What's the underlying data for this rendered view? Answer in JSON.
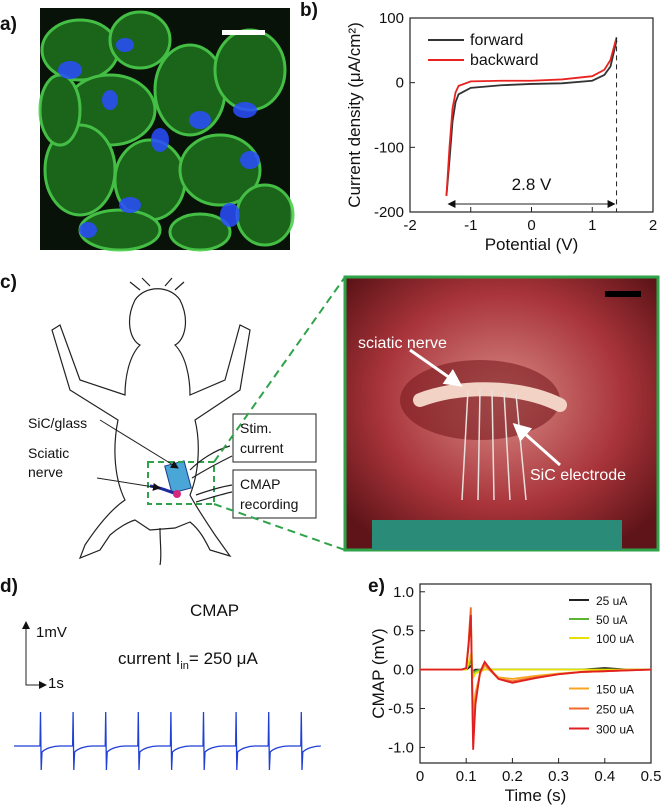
{
  "panels": {
    "a": "a)",
    "b": "b)",
    "c": "c)",
    "d": "d)",
    "e": "e)"
  },
  "diagram": {
    "sic_glass": "SiC/glass",
    "sciatic_1": "Sciatic",
    "sciatic_2": "nerve",
    "stim_1": "Stim.",
    "stim_2": "current",
    "cmap_1": "CMAP",
    "cmap_2": "recording",
    "photo_nerve": "sciatic nerve",
    "photo_electrode": "SiC electrode"
  },
  "trace": {
    "title": "CMAP",
    "scale_y": "1mV",
    "scale_x": "1s",
    "current_label": "current I",
    "current_subscript": "in",
    "current_value": "= 250 μA"
  },
  "chart_data": [
    {
      "type": "line",
      "xlabel": "Potential (V)",
      "ylabel": "Current density (μA/cm²)",
      "annotation": "2.8 V",
      "legend": "upper left",
      "x": [
        -1.4,
        -1.35,
        -1.3,
        -1.25,
        -1.2,
        -1.0,
        -0.5,
        0,
        0.5,
        1.0,
        1.2,
        1.3,
        1.4
      ],
      "series": [
        {
          "name": "forward",
          "color": "#333333",
          "values": [
            -175,
            -120,
            -60,
            -30,
            -18,
            -8,
            -4,
            -2,
            -1,
            3,
            12,
            25,
            65
          ]
        },
        {
          "name": "backward",
          "color": "#e8231f",
          "values": [
            -175,
            -100,
            -40,
            -15,
            -5,
            2,
            3,
            3,
            5,
            10,
            20,
            35,
            70
          ]
        }
      ],
      "xlim": [
        -2,
        2
      ],
      "xticks": [
        -2,
        -1,
        0,
        1,
        2
      ],
      "ylim": [
        -200,
        100
      ],
      "yticks": [
        -200,
        -100,
        0,
        100
      ]
    },
    {
      "type": "line",
      "xlabel": "Time (s)",
      "ylabel": "CMAP (mV)",
      "legend": "right",
      "x": [
        0,
        0.09,
        0.1,
        0.105,
        0.11,
        0.115,
        0.12,
        0.13,
        0.14,
        0.15,
        0.17,
        0.2,
        0.25,
        0.3,
        0.35,
        0.4,
        0.45,
        0.5
      ],
      "series": [
        {
          "name": "25 uA",
          "color": "#222222",
          "values": [
            0,
            0,
            0,
            0.02,
            0.05,
            -0.02,
            0,
            0,
            0,
            0,
            0,
            0,
            0,
            0,
            0,
            0.02,
            0,
            0
          ]
        },
        {
          "name": "50 uA",
          "color": "#5cb531",
          "values": [
            0,
            0,
            0,
            0.05,
            0.12,
            -0.05,
            -0.02,
            0,
            0,
            0,
            0,
            0,
            0,
            0,
            0,
            0,
            0,
            0
          ]
        },
        {
          "name": "100 uA",
          "color": "#e8e000",
          "values": [
            0,
            0,
            0,
            0.08,
            0.2,
            -0.1,
            -0.05,
            -0.02,
            0,
            0,
            0,
            0,
            0,
            0,
            0,
            0,
            0,
            0
          ]
        },
        {
          "name": "150 uA",
          "color": "#f5a623",
          "values": [
            0,
            0,
            0.02,
            0.3,
            0.7,
            -0.6,
            -0.3,
            -0.05,
            0.05,
            0,
            -0.1,
            -0.12,
            -0.08,
            -0.05,
            -0.03,
            -0.02,
            0,
            0
          ]
        },
        {
          "name": "250 uA",
          "color": "#f06a2a",
          "values": [
            0,
            0,
            0.02,
            0.35,
            0.8,
            -0.9,
            -0.4,
            -0.05,
            0.08,
            0,
            -0.12,
            -0.15,
            -0.1,
            -0.06,
            -0.03,
            -0.02,
            -0.01,
            0
          ]
        },
        {
          "name": "300 uA",
          "color": "#e02020",
          "values": [
            0,
            0,
            0.02,
            0.3,
            0.7,
            -1.03,
            -0.45,
            -0.03,
            0.1,
            0.02,
            -0.12,
            -0.17,
            -0.11,
            -0.06,
            -0.03,
            -0.02,
            -0.01,
            0
          ]
        }
      ],
      "xlim": [
        0,
        0.5
      ],
      "xticks": [
        0,
        0.1,
        0.2,
        0.3,
        0.4,
        0.5
      ],
      "ylim": [
        -1.2,
        1.1
      ],
      "yticks": [
        {
          "value": -1,
          "label": "-1.0"
        },
        -0.5,
        {
          "value": 0,
          "label": "0.0"
        },
        0.5,
        {
          "value": 1,
          "label": "1.0"
        }
      ]
    }
  ]
}
